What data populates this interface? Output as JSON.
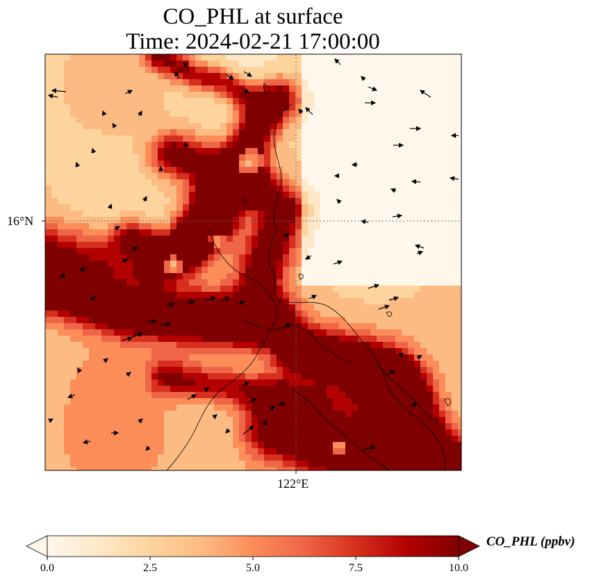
{
  "figure": {
    "title_line1": "CO_PHL at surface",
    "title_line2": "Time: 2024-02-21 17:00:00",
    "variable": "CO_PHL",
    "units": "ppbv",
    "colormap": "OrRd",
    "colors": [
      "#fff7ec",
      "#fee8c8",
      "#fdd49e",
      "#fdbb84",
      "#fc8d59",
      "#ef6548",
      "#d7301f",
      "#b30000",
      "#7f0000"
    ]
  },
  "map": {
    "lat_tick_label": "16°N",
    "lon_tick_label": "122°E",
    "gridlines": "dotted",
    "features": [
      "coastlines",
      "wind-vectors"
    ]
  },
  "colorbar": {
    "label": "CO_PHL (ppbv)",
    "ticks": [
      "0.0",
      "2.5",
      "5.0",
      "7.5",
      "10.0"
    ],
    "min": 0,
    "max": 10,
    "extend": "both"
  }
}
